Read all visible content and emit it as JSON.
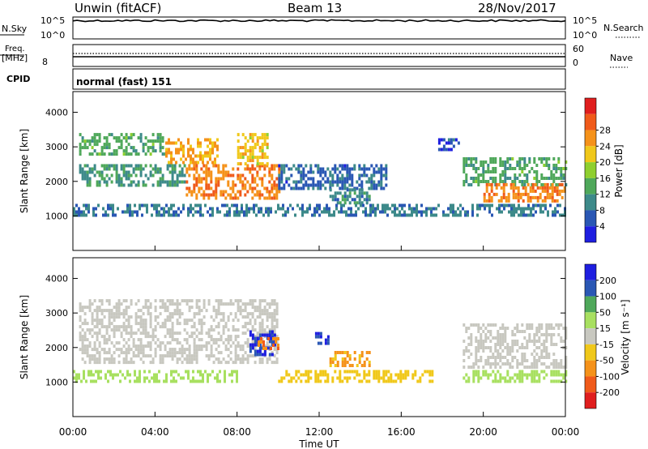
{
  "header": {
    "station": "Unwin (fitACF)",
    "beam": "Beam 13",
    "date": "28/Nov/2017"
  },
  "labels": {
    "nsky": "N.Sky",
    "freq": "Freq.",
    "mhz": "[MHz]",
    "cpid": "CPID",
    "nsearch": "N.Search",
    "nave": "Nave",
    "mode": "normal (fast) 151"
  },
  "colors": {
    "power_scale": [
      "#1e1ee0",
      "#2a57b4",
      "#3d8a8a",
      "#4fa85a",
      "#8fcf2f",
      "#f0c81a",
      "#f5921a",
      "#f05a1a",
      "#e01e1e"
    ],
    "velocity_scale": [
      "#e01e1e",
      "#f05a1a",
      "#f5921a",
      "#f0c81a",
      "#c8c8c0",
      "#a8e060",
      "#4fa85a",
      "#2a57b4",
      "#1e1ee0"
    ]
  },
  "chart_data": [
    {
      "type": "line",
      "name": "noise_panel",
      "xlabel": "",
      "ylabel": "",
      "left_ticks": [
        "10^5",
        "10^0"
      ],
      "right_ticks": [
        "10^5",
        "10^0"
      ],
      "series": [
        {
          "name": "N.Sky",
          "style": "solid",
          "x": [
            "00:00",
            "02:00",
            "04:00",
            "06:00",
            "08:00",
            "10:00",
            "12:00",
            "14:00",
            "16:00",
            "18:00",
            "20:00",
            "22:00",
            "24:00"
          ],
          "values": [
            100000,
            90000,
            110000,
            100000,
            105000,
            95000,
            100000,
            100000,
            100000,
            95000,
            100000,
            100000,
            100000
          ]
        }
      ],
      "ylim": [
        1,
        100000
      ],
      "scale": "log"
    },
    {
      "type": "line",
      "name": "freq_panel",
      "left_ticks": [
        "8"
      ],
      "right_ticks": [
        "60",
        "0"
      ],
      "series": [
        {
          "name": "Freq.",
          "style": "solid",
          "x": [
            "00:00",
            "24:00"
          ],
          "values": [
            10.0,
            10.0
          ]
        },
        {
          "name": "Nave",
          "style": "dotted",
          "x": [
            "00:00",
            "24:00"
          ],
          "values": [
            37,
            37
          ]
        }
      ]
    },
    {
      "type": "heatmap",
      "name": "power",
      "ylabel": "Slant Range [km]",
      "yticks": [
        1000,
        2000,
        3000,
        4000
      ],
      "ylim": [
        0,
        4600
      ],
      "xlim": [
        0,
        24
      ],
      "colorbar": {
        "label": "Power [dB]",
        "ticks": [
          4,
          8,
          12,
          16,
          20,
          24,
          28
        ],
        "range": [
          0,
          32
        ]
      },
      "echo_regions": [
        {
          "t0": 0.3,
          "t1": 4.5,
          "r0": 2750,
          "r1": 3400,
          "level": 12
        },
        {
          "t0": 0.3,
          "t1": 5.5,
          "r0": 1850,
          "r1": 2500,
          "level": 10
        },
        {
          "t0": 4.5,
          "t1": 7.0,
          "r0": 2500,
          "r1": 3250,
          "level": 22
        },
        {
          "t0": 5.5,
          "t1": 10.0,
          "r0": 1550,
          "r1": 2500,
          "level": 24
        },
        {
          "t0": 8.0,
          "t1": 9.5,
          "r0": 2500,
          "r1": 3400,
          "level": 20
        },
        {
          "t0": 10.0,
          "t1": 15.3,
          "r0": 1800,
          "r1": 2500,
          "level": 6
        },
        {
          "t0": 12.5,
          "t1": 14.5,
          "r0": 1400,
          "r1": 1800,
          "level": 9
        },
        {
          "t0": 19.0,
          "t1": 24.0,
          "r0": 1900,
          "r1": 2700,
          "level": 12
        },
        {
          "t0": 20.0,
          "t1": 24.0,
          "r0": 1450,
          "r1": 1950,
          "level": 24
        },
        {
          "t0": 17.8,
          "t1": 18.8,
          "r0": 2950,
          "r1": 3250,
          "level": 5
        },
        {
          "t0": 0.0,
          "t1": 24.0,
          "r0": 1050,
          "r1": 1350,
          "level": 8
        }
      ]
    },
    {
      "type": "heatmap",
      "name": "velocity",
      "ylabel": "Slant Range [km]",
      "xlabel": "Time UT",
      "xticks": [
        "00:00",
        "04:00",
        "08:00",
        "12:00",
        "16:00",
        "20:00",
        "00:00"
      ],
      "yticks": [
        1000,
        2000,
        3000,
        4000
      ],
      "ylim": [
        0,
        4600
      ],
      "xlim": [
        0,
        24
      ],
      "colorbar": {
        "label": "Velocity [m s⁻¹]",
        "ticks": [
          200,
          100,
          50,
          15,
          -15,
          -50,
          -100,
          -200
        ]
      },
      "echo_regions": [
        {
          "t0": 0.3,
          "t1": 10.0,
          "r0": 1600,
          "r1": 3400,
          "v": 0
        },
        {
          "t0": 8.6,
          "t1": 9.8,
          "r0": 1800,
          "r1": 2500,
          "v": 200
        },
        {
          "t0": 9.0,
          "t1": 10.0,
          "r0": 2000,
          "r1": 2300,
          "v": -100
        },
        {
          "t0": 11.8,
          "t1": 12.4,
          "r0": 2100,
          "r1": 2450,
          "v": 200
        },
        {
          "t0": 12.5,
          "t1": 14.5,
          "r0": 1450,
          "r1": 1900,
          "v": -60
        },
        {
          "t0": 10.0,
          "t1": 17.5,
          "r0": 1050,
          "r1": 1350,
          "v": -30
        },
        {
          "t0": 0.0,
          "t1": 8.0,
          "r0": 1050,
          "r1": 1350,
          "v": 40
        },
        {
          "t0": 19.0,
          "t1": 24.0,
          "r0": 1450,
          "r1": 2700,
          "v": 0
        },
        {
          "t0": 19.0,
          "t1": 24.0,
          "r0": 1050,
          "r1": 1350,
          "v": 30
        }
      ]
    }
  ]
}
